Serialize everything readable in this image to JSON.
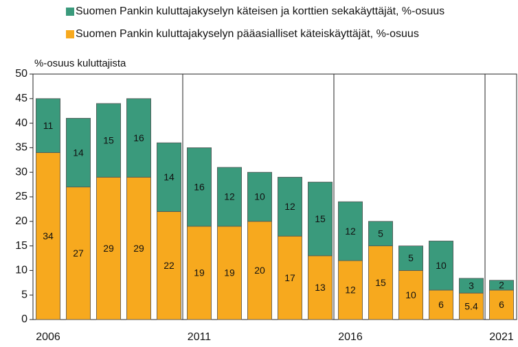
{
  "chart_data": {
    "type": "stacked_bar",
    "y_label": "%-osuus kuluttajista",
    "categories": [
      "2006",
      null,
      null,
      null,
      null,
      "2011",
      null,
      null,
      null,
      null,
      "2016",
      null,
      null,
      null,
      null,
      "2021"
    ],
    "series": [
      {
        "name": "Suomen Pankin kuluttajakyselyn käteisen ja korttien sekakäyttäjät, %-osuus",
        "color": "#3a9a7c",
        "values": [
          11,
          14,
          15,
          16,
          14,
          16,
          12,
          10,
          12,
          15,
          12,
          5,
          5,
          10,
          3,
          2
        ]
      },
      {
        "name": "Suomen Pankin kuluttajakyselyn pääasialliset käteiskäyttäjät, %-osuus",
        "color": "#f7a91e",
        "values": [
          34,
          27,
          29,
          29,
          22,
          19,
          19,
          20,
          17,
          13,
          12,
          15,
          10,
          6,
          5.4,
          6
        ]
      }
    ],
    "ylim": [
      0,
      50
    ],
    "yticks": [
      0,
      5,
      10,
      15,
      20,
      25,
      30,
      35,
      40,
      45,
      50
    ],
    "grid": false
  }
}
